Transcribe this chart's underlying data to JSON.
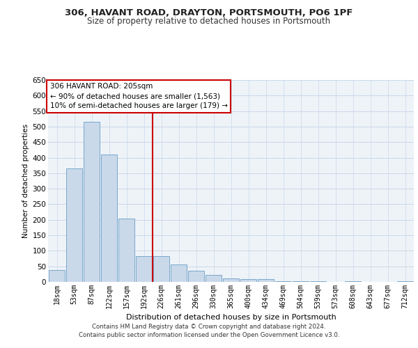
{
  "title1": "306, HAVANT ROAD, DRAYTON, PORTSMOUTH, PO6 1PF",
  "title2": "Size of property relative to detached houses in Portsmouth",
  "xlabel": "Distribution of detached houses by size in Portsmouth",
  "ylabel": "Number of detached properties",
  "bar_labels": [
    "18sqm",
    "53sqm",
    "87sqm",
    "122sqm",
    "157sqm",
    "192sqm",
    "226sqm",
    "261sqm",
    "296sqm",
    "330sqm",
    "365sqm",
    "400sqm",
    "434sqm",
    "469sqm",
    "504sqm",
    "539sqm",
    "573sqm",
    "608sqm",
    "643sqm",
    "677sqm",
    "712sqm"
  ],
  "bar_values": [
    37,
    365,
    515,
    410,
    205,
    83,
    83,
    55,
    35,
    22,
    12,
    8,
    8,
    3,
    3,
    3,
    0,
    3,
    0,
    0,
    3
  ],
  "bar_color": "#c9d9ea",
  "bar_edge_color": "#6a9ec5",
  "grid_color": "#c8d8e8",
  "background_color": "#eef3f8",
  "vline_x": 5.5,
  "vline_color": "#cc0000",
  "annotation_text": "306 HAVANT ROAD: 205sqm\n← 90% of detached houses are smaller (1,563)\n10% of semi-detached houses are larger (179) →",
  "annotation_box_color": "#ffffff",
  "annotation_border_color": "#cc0000",
  "footer1": "Contains HM Land Registry data © Crown copyright and database right 2024.",
  "footer2": "Contains public sector information licensed under the Open Government Licence v3.0.",
  "ylim": [
    0,
    650
  ],
  "yticks": [
    0,
    50,
    100,
    150,
    200,
    250,
    300,
    350,
    400,
    450,
    500,
    550,
    600,
    650
  ],
  "title1_fontsize": 9.5,
  "title2_fontsize": 8.5
}
